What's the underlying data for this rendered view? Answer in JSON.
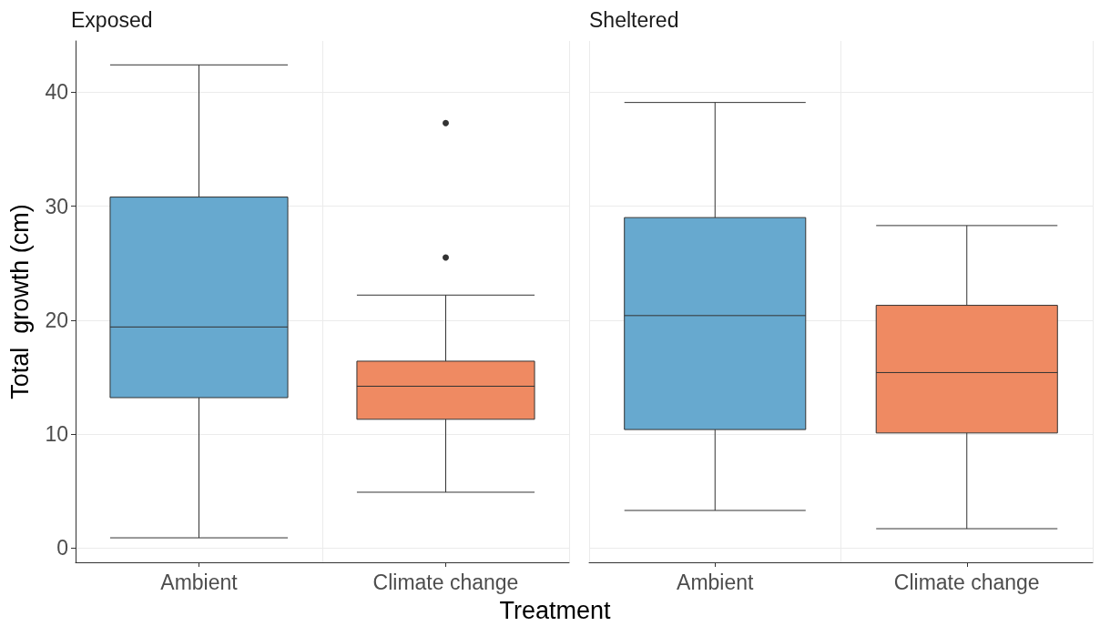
{
  "chart_data": [
    {
      "type": "box",
      "title": "Exposed",
      "ylabel": "Total  growth (cm)",
      "xlabel": "Treatment",
      "categories": [
        "Ambient",
        "Climate change"
      ],
      "colors": [
        "#67a9cf",
        "#ef8a62"
      ],
      "ylim": [
        -1.25,
        44.5
      ],
      "yticks": [
        0,
        10,
        20,
        30,
        40
      ],
      "grid": true,
      "boxes": [
        {
          "low": 0.9,
          "q1": 13.2,
          "median": 19.4,
          "q3": 30.8,
          "high": 42.4
        },
        {
          "low": 4.9,
          "q1": 11.3,
          "median": 14.2,
          "q3": 16.4,
          "high": 22.2,
          "outliers": [
            25.5,
            37.3
          ]
        }
      ]
    },
    {
      "type": "box",
      "title": "Sheltered",
      "categories": [
        "Ambient",
        "Climate change"
      ],
      "colors": [
        "#67a9cf",
        "#ef8a62"
      ],
      "ylim": [
        -1.25,
        44.5
      ],
      "yticks": [
        0,
        10,
        20,
        30,
        40
      ],
      "grid": true,
      "tick_labels": "x",
      "boxes": [
        {
          "low": 3.3,
          "q1": 10.4,
          "median": 20.4,
          "q3": 29.0,
          "high": 39.1
        },
        {
          "low": 1.7,
          "q1": 10.1,
          "median": 15.4,
          "q3": 21.3,
          "high": 28.3
        }
      ]
    }
  ]
}
